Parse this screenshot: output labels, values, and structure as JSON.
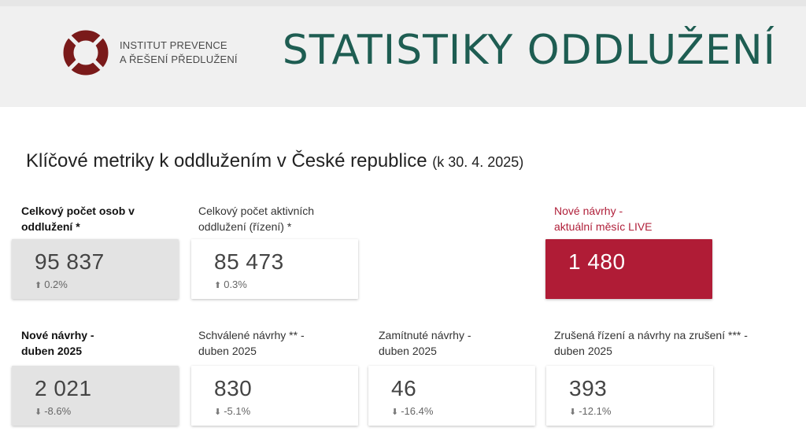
{
  "header": {
    "logo_line1": "INSTITUT PREVENCE",
    "logo_line2": "A ŘEŠENÍ PŘEDLUŽENÍ",
    "title": "STATISTIKY ODDLUŽENÍ"
  },
  "section": {
    "title": "Klíčové metriky k oddlužením v České republice",
    "date": "(k 30. 4. 2025)"
  },
  "metrics": {
    "total_persons": {
      "label_line1": "Celkový počet osob v",
      "label_line2": "oddlužení *",
      "value": "95 837",
      "change": "0.2%",
      "direction": "up"
    },
    "active": {
      "label_line1": "Celkový počet aktivních",
      "label_line2": "oddlužení (řízení) *",
      "value": "85 473",
      "change": "0.3%",
      "direction": "up"
    },
    "live": {
      "label_line1": "Nové návrhy -",
      "label_line2": "aktuální měsíc LIVE",
      "value": "1 480"
    },
    "new_proposals": {
      "label_line1": "Nové návrhy -",
      "label_line2": "duben 2025",
      "value": "2 021",
      "change": "-8.6%",
      "direction": "down"
    },
    "approved": {
      "label_line1": "Schválené návrhy ** -",
      "label_line2": "duben 2025",
      "value": "830",
      "change": "-5.1%",
      "direction": "down"
    },
    "rejected": {
      "label_line1": "Zamítnuté návrhy -",
      "label_line2": "duben 2025",
      "value": "46",
      "change": "-16.4%",
      "direction": "down"
    },
    "cancelled": {
      "label_line1": "Zrušená řízení a návrhy na zrušení *** -",
      "label_line2": "duben 2025",
      "value": "393",
      "change": "-12.1%",
      "direction": "down"
    }
  },
  "colors": {
    "title": "#1e5d52",
    "live_card": "#b01c36",
    "logo_ring": "#7a1a1a"
  },
  "icons": {
    "up": "arrow-up-icon",
    "down": "arrow-down-icon"
  }
}
